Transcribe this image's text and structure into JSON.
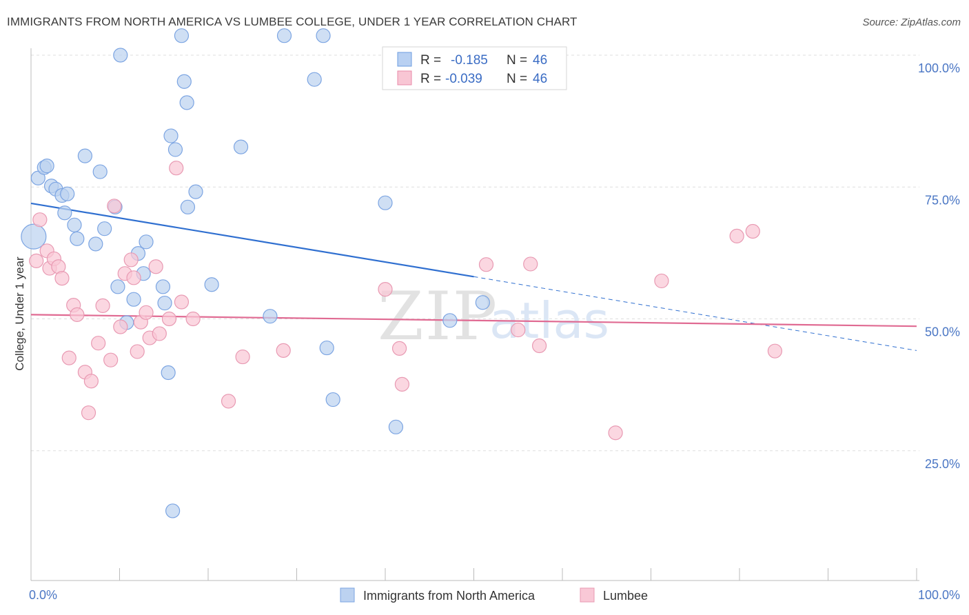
{
  "title": "IMMIGRANTS FROM NORTH AMERICA VS LUMBEE COLLEGE, UNDER 1 YEAR CORRELATION CHART",
  "source": "Source: ZipAtlas.com",
  "watermark": {
    "zip": "ZIP",
    "atlas": "atlas"
  },
  "legend": {
    "r_label": "R =",
    "n_label": "N =",
    "rows": [
      {
        "r": "-0.185",
        "n": "46",
        "fill": "#b8d0f2",
        "stroke": "#6d9de0"
      },
      {
        "r": "-0.039",
        "n": "46",
        "fill": "#f8c6d4",
        "stroke": "#e98aa8"
      }
    ]
  },
  "colors": {
    "blue_fill": "#bcd2f0",
    "blue_stroke": "#7ba4e2",
    "blue_line": "#2f6fd0",
    "pink_fill": "#f9c8d6",
    "pink_stroke": "#e899b2",
    "pink_line": "#e06a92",
    "grid": "#dddddd",
    "tick_label": "#4a76c4"
  },
  "chart_data": {
    "type": "scatter",
    "title": "IMMIGRANTS FROM NORTH AMERICA VS LUMBEE COLLEGE, UNDER 1 YEAR CORRELATION CHART",
    "xlabel": "",
    "ylabel": "College, Under 1 year",
    "xlim": [
      0,
      100
    ],
    "ylim": [
      0,
      105
    ],
    "x_ticks": [
      "0.0%",
      "100.0%"
    ],
    "y_ticks": [
      {
        "value": 25,
        "label": "25.0%"
      },
      {
        "value": 50,
        "label": "50.0%"
      },
      {
        "value": 75,
        "label": "75.0%"
      },
      {
        "value": 100,
        "label": "100.0%"
      }
    ],
    "grid": true,
    "legend_position": "top-center",
    "series": [
      {
        "name": "Immigrants from North America",
        "color": "blue",
        "trend": {
          "x0": 0,
          "y0": 71.9,
          "x1": 50,
          "y1": 58.0,
          "dash_to_x": 100,
          "dash_to_y": 44.0
        },
        "points": [
          [
            0.3,
            65.6,
            18
          ],
          [
            0.8,
            76.7,
            10
          ],
          [
            1.5,
            78.7,
            10
          ],
          [
            1.8,
            79.0,
            10
          ],
          [
            2.3,
            75.2,
            10
          ],
          [
            2.8,
            74.6,
            10
          ],
          [
            3.5,
            73.4,
            10
          ],
          [
            4.1,
            73.7,
            10
          ],
          [
            3.8,
            70.1,
            10
          ],
          [
            4.9,
            67.8,
            10
          ],
          [
            5.2,
            65.2,
            10
          ],
          [
            8.3,
            67.1,
            10
          ],
          [
            6.1,
            80.9,
            10
          ],
          [
            7.8,
            77.9,
            10
          ],
          [
            7.3,
            64.2,
            10
          ],
          [
            9.5,
            71.2,
            10
          ],
          [
            9.8,
            56.1,
            10
          ],
          [
            10.8,
            49.3,
            10
          ],
          [
            11.6,
            53.7,
            10
          ],
          [
            10.1,
            100.0,
            10
          ],
          [
            12.1,
            62.4,
            10
          ],
          [
            13.0,
            64.6,
            10
          ],
          [
            14.9,
            56.1,
            10
          ],
          [
            15.5,
            39.8,
            10
          ],
          [
            15.1,
            53.0,
            10
          ],
          [
            12.7,
            58.6,
            10
          ],
          [
            15.8,
            84.7,
            10
          ],
          [
            16.3,
            82.1,
            10
          ],
          [
            17.3,
            95.0,
            10
          ],
          [
            17.0,
            103.7,
            10
          ],
          [
            17.6,
            91.0,
            10
          ],
          [
            16.0,
            13.6,
            10
          ],
          [
            17.7,
            71.2,
            10
          ],
          [
            18.6,
            74.1,
            10
          ],
          [
            20.4,
            56.5,
            10
          ],
          [
            23.7,
            82.6,
            10
          ],
          [
            27.0,
            50.5,
            10
          ],
          [
            28.6,
            103.7,
            10
          ],
          [
            32.0,
            95.4,
            10
          ],
          [
            33.0,
            103.7,
            10
          ],
          [
            33.4,
            44.5,
            10
          ],
          [
            34.1,
            34.7,
            10
          ],
          [
            40.0,
            72.0,
            10
          ],
          [
            41.2,
            29.5,
            10
          ],
          [
            47.3,
            49.7,
            10
          ],
          [
            51.0,
            53.1,
            10
          ]
        ]
      },
      {
        "name": "Lumbee",
        "color": "pink",
        "trend": {
          "x0": 0,
          "y0": 50.8,
          "x1": 100,
          "y1": 48.6
        },
        "points": [
          [
            1.0,
            68.8,
            10
          ],
          [
            1.8,
            62.9,
            10
          ],
          [
            2.1,
            59.6,
            10
          ],
          [
            2.6,
            61.4,
            10
          ],
          [
            3.1,
            59.9,
            10
          ],
          [
            3.5,
            57.7,
            10
          ],
          [
            4.3,
            42.6,
            10
          ],
          [
            4.8,
            52.6,
            10
          ],
          [
            5.2,
            50.8,
            10
          ],
          [
            6.1,
            39.9,
            10
          ],
          [
            6.5,
            32.2,
            10
          ],
          [
            6.8,
            38.2,
            10
          ],
          [
            7.6,
            45.4,
            10
          ],
          [
            8.1,
            52.5,
            10
          ],
          [
            9.0,
            42.2,
            10
          ],
          [
            9.4,
            71.4,
            10
          ],
          [
            10.1,
            48.5,
            10
          ],
          [
            10.6,
            58.6,
            10
          ],
          [
            11.3,
            61.2,
            10
          ],
          [
            11.6,
            57.8,
            10
          ],
          [
            12.0,
            43.8,
            10
          ],
          [
            12.4,
            49.4,
            10
          ],
          [
            13.0,
            51.2,
            10
          ],
          [
            13.4,
            46.4,
            10
          ],
          [
            14.1,
            59.9,
            10
          ],
          [
            14.5,
            47.2,
            10
          ],
          [
            15.6,
            50.0,
            10
          ],
          [
            16.4,
            78.6,
            10
          ],
          [
            17.0,
            53.2,
            10
          ],
          [
            18.3,
            50.0,
            10
          ],
          [
            22.3,
            34.4,
            10
          ],
          [
            23.9,
            42.8,
            10
          ],
          [
            28.5,
            44.0,
            10
          ],
          [
            40.0,
            55.6,
            10
          ],
          [
            41.6,
            44.4,
            10
          ],
          [
            41.9,
            37.6,
            10
          ],
          [
            51.4,
            60.3,
            10
          ],
          [
            55.0,
            47.9,
            10
          ],
          [
            57.4,
            44.9,
            10
          ],
          [
            56.4,
            60.4,
            10
          ],
          [
            66.0,
            28.4,
            10
          ],
          [
            71.2,
            57.2,
            10
          ],
          [
            79.7,
            65.7,
            10
          ],
          [
            81.5,
            66.6,
            10
          ],
          [
            84.0,
            43.9,
            10
          ],
          [
            0.6,
            61.0,
            10
          ]
        ]
      }
    ]
  },
  "bottom_legend": [
    {
      "label": "Immigrants from North America",
      "fill": "#bcd2f0",
      "stroke": "#7ba4e2"
    },
    {
      "label": "Lumbee",
      "fill": "#f9c8d6",
      "stroke": "#e899b2"
    }
  ]
}
